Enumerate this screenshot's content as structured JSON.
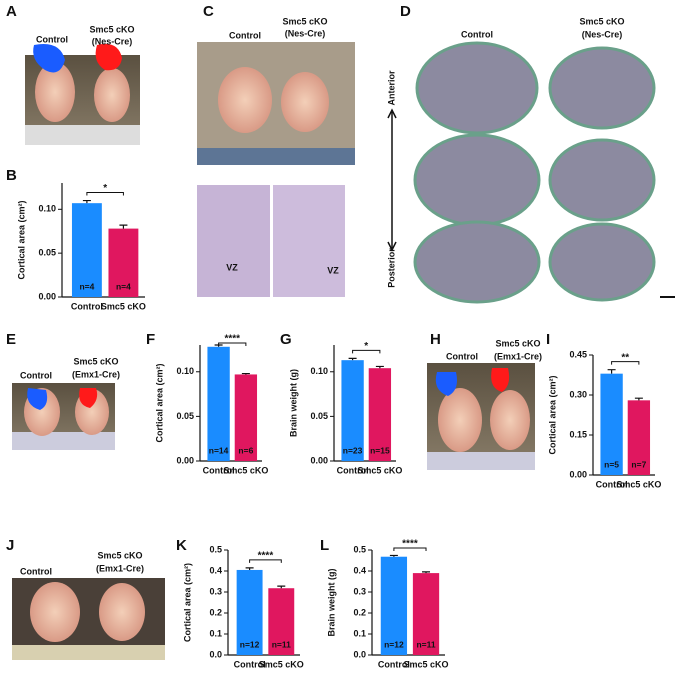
{
  "panels": {
    "A": {
      "letter": "A",
      "labels": [
        "Control",
        "Smc5 cKO",
        "(Nes-Cre)"
      ]
    },
    "C": {
      "letter": "C",
      "labels": [
        "Control",
        "Smc5 cKO",
        "(Nes-Cre)",
        "VZ",
        "VZ"
      ]
    },
    "D": {
      "letter": "D",
      "labels": [
        "Control",
        "Smc5 cKO",
        "(Nes-Cre)",
        "Anterior",
        "Posterior"
      ]
    },
    "E": {
      "letter": "E",
      "labels": [
        "Control",
        "Smc5 cKO",
        "(Emx1-Cre)"
      ]
    },
    "H": {
      "letter": "H",
      "labels": [
        "Control",
        "Smc5 cKO",
        "(Emx1-Cre)"
      ]
    },
    "J": {
      "letter": "J",
      "labels": [
        "Control",
        "Smc5 cKO",
        "(Emx1-Cre)"
      ]
    }
  },
  "chart_data": [
    {
      "type": "bar",
      "panel": "B",
      "ylabel": "Cortical area (cm²)",
      "categories": [
        "Control",
        "Smc5 cKO"
      ],
      "values": [
        0.107,
        0.078
      ],
      "errors": [
        0.003,
        0.004
      ],
      "colors": [
        "#1a8cff",
        "#e0175f"
      ],
      "annotations": [
        "n=4",
        "n=4"
      ],
      "significance": "*",
      "ylim": [
        0,
        0.13
      ],
      "yticks": [
        {
          "value": 0,
          "label": "0.00"
        },
        {
          "value": 0.05,
          "label": "0.05"
        },
        {
          "value": 0.1,
          "label": "0.10"
        }
      ]
    },
    {
      "type": "bar",
      "panel": "F",
      "ylabel": "Cortical area (cm²)",
      "categories": [
        "Control",
        "Smc5 cKO"
      ],
      "values": [
        0.128,
        0.097
      ],
      "errors": [
        0.002,
        0.001
      ],
      "colors": [
        "#1a8cff",
        "#e0175f"
      ],
      "annotations": [
        "n=14",
        "n=6"
      ],
      "significance": "****",
      "ylim": [
        0,
        0.13
      ],
      "yticks": [
        {
          "value": 0,
          "label": "0.00"
        },
        {
          "value": 0.05,
          "label": "0.05"
        },
        {
          "value": 0.1,
          "label": "0.10"
        }
      ]
    },
    {
      "type": "bar",
      "panel": "G",
      "ylabel": "Brain weight (g)",
      "categories": [
        "Control",
        "Smc5 cKO"
      ],
      "values": [
        0.113,
        0.104
      ],
      "errors": [
        0.002,
        0.002
      ],
      "colors": [
        "#1a8cff",
        "#e0175f"
      ],
      "annotations": [
        "n=23",
        "n=15"
      ],
      "significance": "*",
      "ylim": [
        0,
        0.13
      ],
      "yticks": [
        {
          "value": 0,
          "label": "0.00"
        },
        {
          "value": 0.05,
          "label": "0.05"
        },
        {
          "value": 0.1,
          "label": "0.10"
        }
      ]
    },
    {
      "type": "bar",
      "panel": "I",
      "ylabel": "Cortical area (cm²)",
      "categories": [
        "Control",
        "Smc5 cKO"
      ],
      "values": [
        0.38,
        0.28
      ],
      "errors": [
        0.015,
        0.008
      ],
      "colors": [
        "#1a8cff",
        "#e0175f"
      ],
      "annotations": [
        "n=5",
        "n=7"
      ],
      "significance": "**",
      "ylim": [
        0,
        0.45
      ],
      "yticks": [
        {
          "value": 0,
          "label": "0.00"
        },
        {
          "value": 0.15,
          "label": "0.15"
        },
        {
          "value": 0.3,
          "label": "0.30"
        },
        {
          "value": 0.45,
          "label": "0.45"
        }
      ]
    },
    {
      "type": "bar",
      "panel": "K",
      "ylabel": "Cortical area (cm²)",
      "categories": [
        "Control",
        "Smc5 cKO"
      ],
      "values": [
        0.405,
        0.318
      ],
      "errors": [
        0.01,
        0.01
      ],
      "colors": [
        "#1a8cff",
        "#e0175f"
      ],
      "annotations": [
        "n=12",
        "n=11"
      ],
      "significance": "****",
      "ylim": [
        0,
        0.5
      ],
      "yticks": [
        {
          "value": 0,
          "label": "0.0"
        },
        0.1,
        0.2,
        0.3,
        0.4,
        0.5
      ]
    },
    {
      "type": "bar",
      "panel": "L",
      "ylabel": "Brain weight (g)",
      "categories": [
        "Control",
        "Smc5 cKO"
      ],
      "values": [
        0.468,
        0.39
      ],
      "errors": [
        0.006,
        0.006
      ],
      "colors": [
        "#1a8cff",
        "#e0175f"
      ],
      "annotations": [
        "n=12",
        "n=11"
      ],
      "significance": "****",
      "ylim": [
        0,
        0.5
      ],
      "yticks": [
        {
          "value": 0,
          "label": "0.0"
        },
        0.1,
        0.2,
        0.3,
        0.4,
        0.5
      ]
    }
  ]
}
